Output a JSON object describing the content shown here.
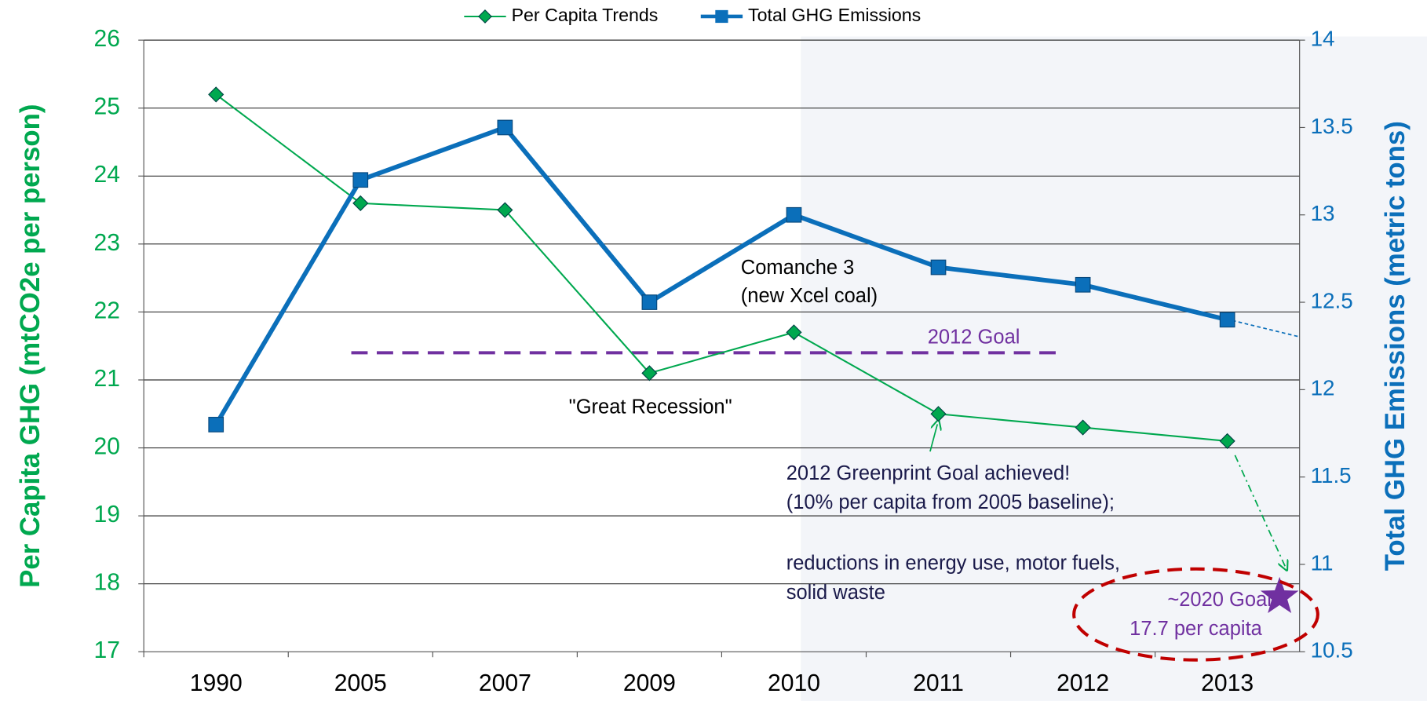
{
  "chart_data": {
    "type": "line",
    "categories": [
      "1990",
      "2005",
      "2007",
      "2009",
      "2010",
      "2011",
      "2012",
      "2013"
    ],
    "series": [
      {
        "name": "Per Capita Trends",
        "color": "#00a84f",
        "values": [
          25.2,
          23.6,
          23.5,
          21.1,
          21.7,
          20.5,
          20.3,
          20.1
        ]
      },
      {
        "name": "Total GHG Emissions",
        "color": "#0b6fba",
        "axis": "y2",
        "values": [
          11.8,
          13.2,
          13.5,
          12.5,
          13.0,
          12.7,
          12.6,
          12.4
        ]
      }
    ],
    "ylabel": "Per Capita GHG (mtCO2e per person)",
    "y2label": "Total GHG Emissions (metric tons)",
    "ylim": [
      17,
      26
    ],
    "yticks": [
      17,
      18,
      19,
      20,
      21,
      22,
      23,
      24,
      25,
      26
    ],
    "y2lim": [
      10.5,
      14
    ],
    "y2ticks": [
      10.5,
      11,
      11.5,
      12,
      12.5,
      13,
      13.5,
      14
    ],
    "grid": true,
    "legend": "top",
    "goal_line": {
      "label": "2012 Goal",
      "value": 21.4,
      "color": "#7030a0"
    },
    "goal_2020": {
      "labels": [
        "~2020 Goal",
        "17.7 per capita"
      ],
      "value": 17.7,
      "color": "#7030a0"
    },
    "annotations": [
      "Comanche 3",
      "(new Xcel coal)",
      "\"Great Recession\"",
      "2012 Greenprint Goal achieved!",
      "(10% per capita from 2005 baseline);",
      "reductions in energy use, motor fuels,",
      "solid waste"
    ]
  }
}
